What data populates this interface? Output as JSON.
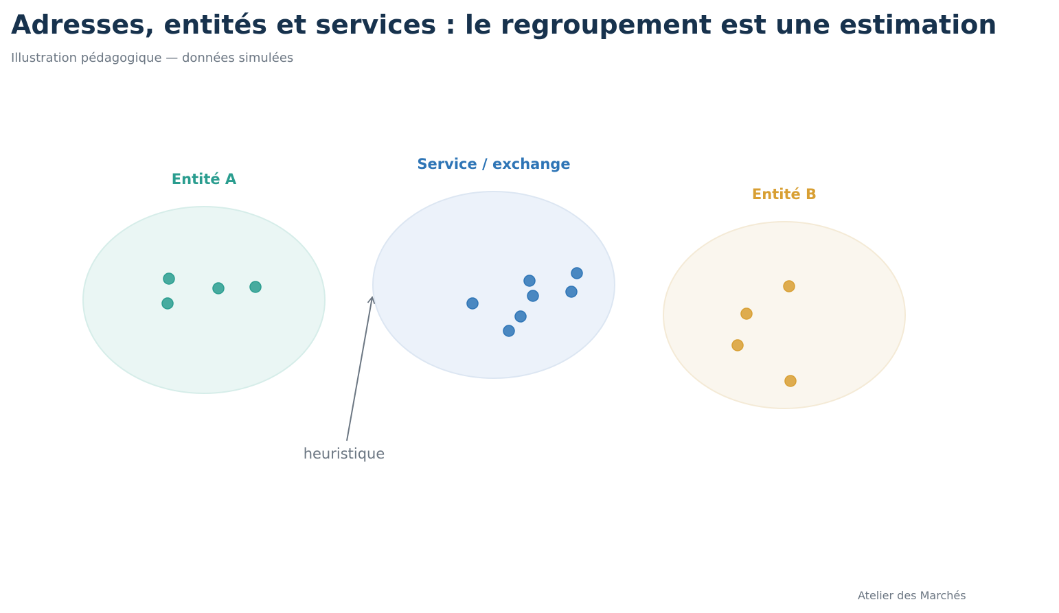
{
  "title": "Adresses, entités et services : le regroupement est une estimation",
  "subtitle": "Illustration pédagogique — données simulées",
  "clusters": [
    {
      "id": "entity-a",
      "label": "Entité A",
      "color": "#2a9d8f",
      "fill": "#eaf6f4",
      "stroke": "#d6ede9",
      "address_count": 4
    },
    {
      "id": "service-exchange",
      "label": "Service / exchange",
      "color": "#2e75b6",
      "fill": "#ecf2fa",
      "stroke": "#dce6f2",
      "address_count": 7
    },
    {
      "id": "entity-b",
      "label": "Entité B",
      "color": "#d89f33",
      "fill": "#faf6ee",
      "stroke": "#f4ead6",
      "address_count": 4
    }
  ],
  "annotation": {
    "label": "heuristique",
    "color": "#6b7682"
  },
  "credit": "Atelier des Marchés"
}
